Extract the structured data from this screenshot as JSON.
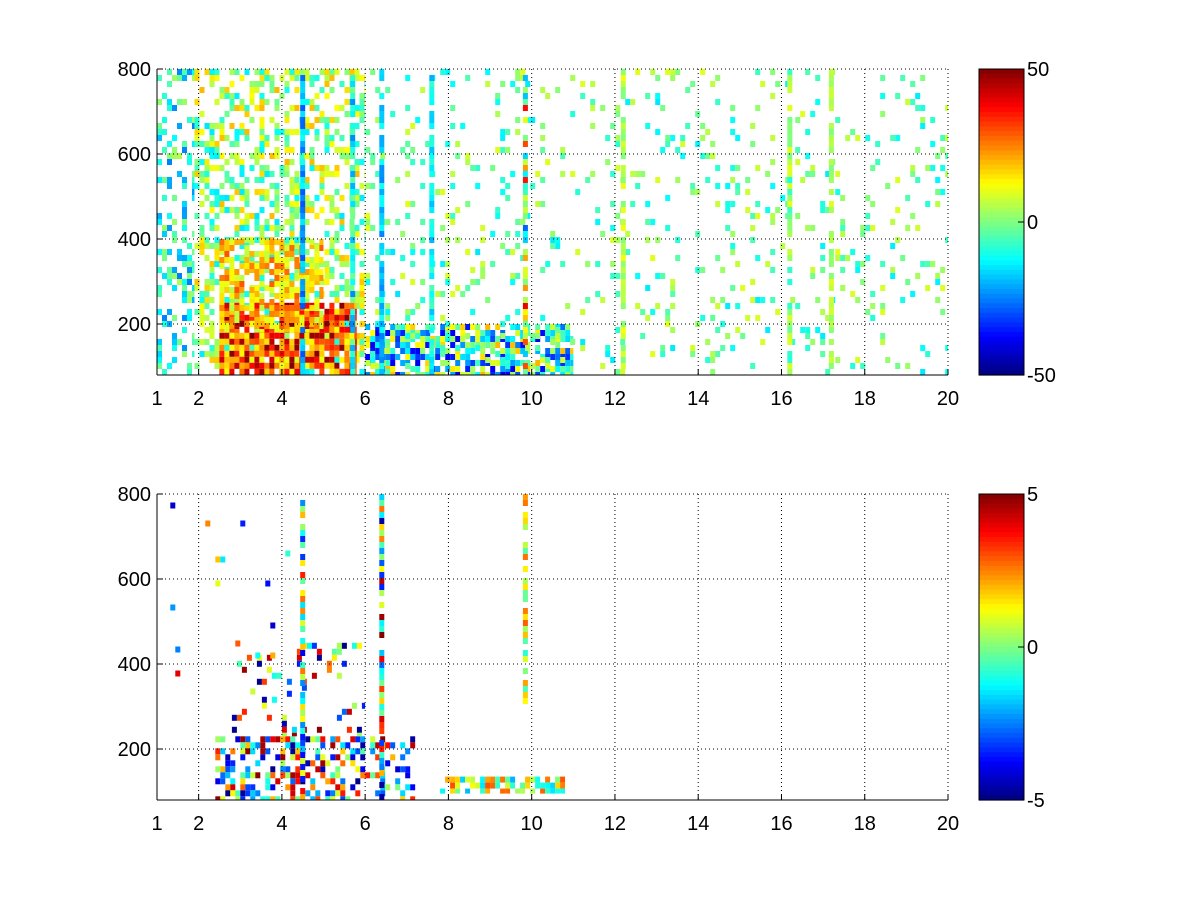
{
  "chart_data": [
    {
      "type": "heatmap",
      "title": "",
      "xlabel": "",
      "ylabel": "",
      "colormap": "jet",
      "grid": true,
      "grid_style": "dotted",
      "xlim": [
        1,
        20
      ],
      "ylim": [
        80,
        800
      ],
      "x_ticks": [
        1,
        2,
        4,
        6,
        8,
        10,
        12,
        14,
        16,
        18,
        20
      ],
      "y_ticks": [
        200,
        400,
        600,
        800
      ],
      "colorbar": {
        "placement": "right",
        "range": [
          -50,
          50
        ],
        "ticks": [
          50,
          0,
          -50
        ]
      },
      "background": "#ffffff",
      "regions": [
        {
          "x": [
            1.0,
            1.9
          ],
          "y": [
            80,
            800
          ],
          "density": 0.35,
          "values": [
            -25,
            5
          ]
        },
        {
          "x": [
            1.9,
            6.0
          ],
          "y": [
            80,
            800
          ],
          "density": 0.45,
          "values": [
            -15,
            20
          ]
        },
        {
          "x": [
            2.5,
            5.8
          ],
          "y": [
            80,
            250
          ],
          "density": 0.85,
          "values": [
            10,
            50
          ]
        },
        {
          "x": [
            2.5,
            5.0
          ],
          "y": [
            180,
            400
          ],
          "density": 0.6,
          "values": [
            5,
            30
          ]
        },
        {
          "x": [
            6.0,
            11.0
          ],
          "y": [
            80,
            200
          ],
          "density": 0.75,
          "values": [
            -40,
            20
          ]
        },
        {
          "x": [
            6.0,
            20.0
          ],
          "y": [
            80,
            800
          ],
          "density": 0.1,
          "values": [
            -15,
            10
          ]
        }
      ],
      "streaks": [
        {
          "x": 4.5,
          "y": [
            80,
            800
          ],
          "values": [
            -30,
            -10
          ]
        },
        {
          "x": 5.7,
          "y": [
            80,
            800
          ],
          "values": [
            -25,
            0
          ]
        },
        {
          "x": 6.4,
          "y": [
            80,
            800
          ],
          "values": [
            -25,
            -10
          ]
        },
        {
          "x": 7.6,
          "y": [
            80,
            800
          ],
          "values": [
            -20,
            -5
          ]
        },
        {
          "x": 9.85,
          "y": [
            80,
            800
          ],
          "values": [
            -40,
            40
          ]
        },
        {
          "x": 12.2,
          "y": [
            80,
            800
          ],
          "values": [
            0,
            12
          ]
        },
        {
          "x": 16.2,
          "y": [
            80,
            800
          ],
          "values": [
            -10,
            10
          ]
        },
        {
          "x": 17.2,
          "y": [
            80,
            800
          ],
          "values": [
            0,
            10
          ]
        }
      ]
    },
    {
      "type": "heatmap",
      "title": "",
      "xlabel": "",
      "ylabel": "",
      "colormap": "jet",
      "grid": true,
      "grid_style": "dotted",
      "xlim": [
        1,
        20
      ],
      "ylim": [
        80,
        800
      ],
      "x_ticks": [
        1,
        2,
        4,
        6,
        8,
        10,
        12,
        14,
        16,
        18,
        20
      ],
      "y_ticks": [
        200,
        400,
        600,
        800
      ],
      "colorbar": {
        "placement": "right",
        "range": [
          -5,
          5
        ],
        "ticks": [
          5,
          0,
          -5
        ]
      },
      "background": "#ffffff",
      "regions": [
        {
          "x": [
            2.4,
            6.0
          ],
          "y": [
            80,
            230
          ],
          "density": 0.55,
          "values": [
            -5,
            5
          ]
        },
        {
          "x": [
            2.8,
            6.0
          ],
          "y": [
            230,
            450
          ],
          "density": 0.12,
          "values": [
            -5,
            5
          ]
        },
        {
          "x": [
            6.0,
            7.2
          ],
          "y": [
            80,
            230
          ],
          "density": 0.35,
          "values": [
            -5,
            5
          ]
        },
        {
          "x": [
            7.8,
            10.8
          ],
          "y": [
            95,
            135
          ],
          "density": 0.7,
          "values": [
            -2,
            3
          ]
        },
        {
          "x": [
            1.2,
            4.5
          ],
          "y": [
            300,
            780
          ],
          "density": 0.02,
          "values": [
            -5,
            5
          ]
        }
      ],
      "streaks": [
        {
          "x": 4.5,
          "y": [
            80,
            800
          ],
          "values": [
            -4,
            4
          ]
        },
        {
          "x": 6.4,
          "y": [
            80,
            800
          ],
          "values": [
            -5,
            5
          ]
        },
        {
          "x": 9.85,
          "y": [
            300,
            800
          ],
          "values": [
            -1,
            3
          ]
        }
      ]
    }
  ]
}
